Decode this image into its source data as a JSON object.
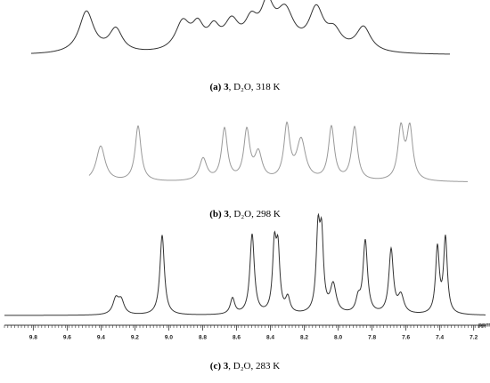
{
  "panels": [
    {
      "label": "(a)",
      "compound": "3",
      "conditions": ", D₂O, 318 K"
    },
    {
      "label": "(b)",
      "compound": "3",
      "conditions": ", D₂O, 298 K"
    },
    {
      "label": "(c)",
      "compound": "3",
      "conditions": ", D₂O, 283 K"
    }
  ],
  "axis": {
    "unit": "ppm",
    "xlim": [
      9.97,
      7.13
    ],
    "ticks": [
      9.8,
      9.6,
      9.4,
      9.2,
      {
        "value": 9,
        "label": "9.0"
      },
      8.8,
      8.6,
      8.4,
      8.2,
      {
        "value": 8,
        "label": "8.0"
      },
      7.8,
      7.6,
      7.4,
      7.2
    ]
  }
}
